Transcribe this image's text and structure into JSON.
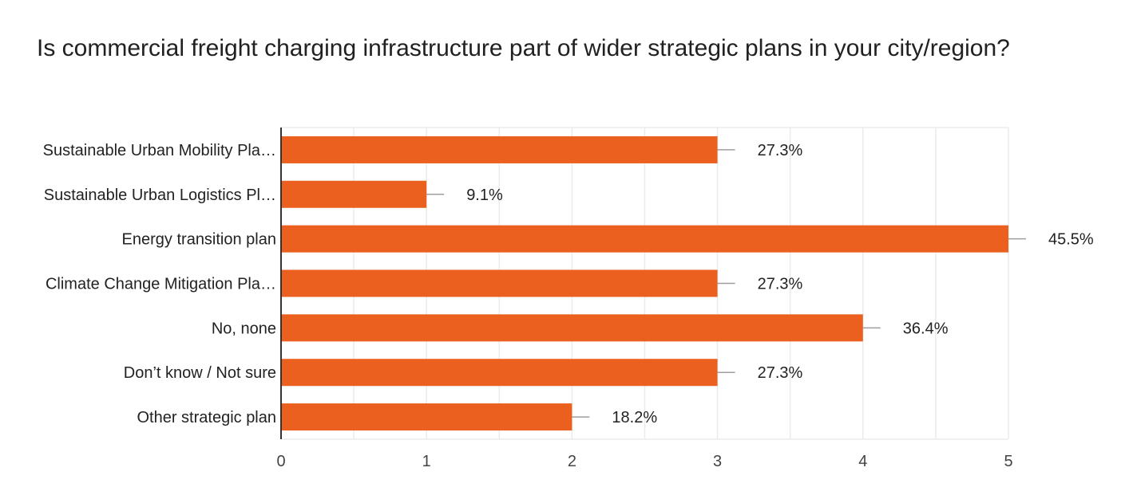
{
  "chart_data": {
    "type": "bar",
    "orientation": "horizontal",
    "title": "Is commercial freight charging infrastructure part of wider strategic plans in your city/region?",
    "categories": [
      "Sustainable Urban Mobility Pla…",
      "Sustainable Urban Logistics Pl…",
      "Energy transition plan",
      "Climate Change Mitigation Pla…",
      "No, none",
      "Don’t know / Not sure",
      "Other strategic plan"
    ],
    "values": [
      3,
      1,
      5,
      3,
      4,
      3,
      2
    ],
    "percent_labels": [
      "27.3%",
      "9.1%",
      "45.5%",
      "27.3%",
      "36.4%",
      "27.3%",
      "18.2%"
    ],
    "xlim": [
      0,
      5
    ],
    "xticks": [
      "0",
      "1",
      "2",
      "3",
      "4",
      "5"
    ],
    "grid": true,
    "colors": {
      "bar": "#EB601F",
      "grid": "#EBEBEB",
      "axis": "#333333",
      "leader": "#9E9E9E"
    }
  }
}
